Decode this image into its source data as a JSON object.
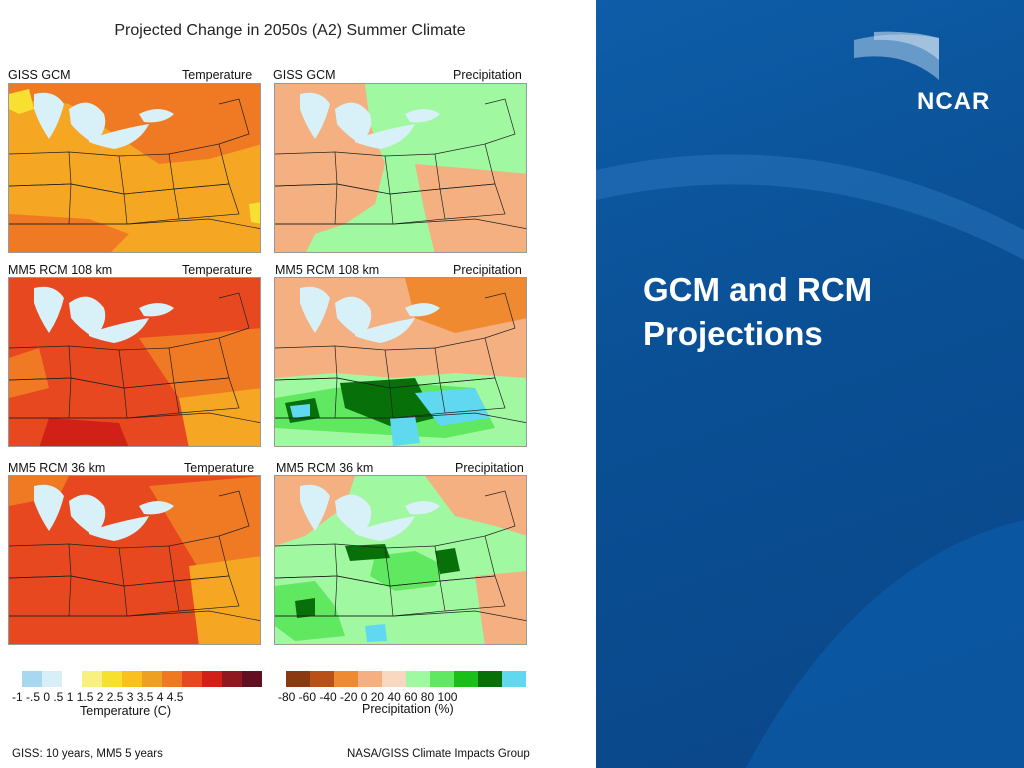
{
  "figure": {
    "title": "Projected Change in 2050s (A2) Summer Climate",
    "panels": [
      {
        "left": "GISS GCM",
        "right": "Temperature"
      },
      {
        "left": "GISS GCM",
        "right": "Precipitation"
      },
      {
        "left": "MM5 RCM 108 km",
        "right": "Temperature"
      },
      {
        "left": "MM5 RCM 108 km",
        "right": "Precipitation"
      },
      {
        "left": "MM5 RCM 36 km",
        "right": "Temperature"
      },
      {
        "left": "MM5 RCM 36 km",
        "right": "Precipitation"
      }
    ],
    "temp_legend": {
      "ticks": "-1  -.5   0   .5   1  1.5  2  2.5  3  3.5  4  4.5",
      "title": "Temperature (C)",
      "colors": [
        "#a8d8f0",
        "#d8eef8",
        "#ffffff",
        "#f8f080",
        "#f8e030",
        "#f8c020",
        "#f0a020",
        "#f07820",
        "#e84820",
        "#d02018",
        "#901820",
        "#601020"
      ]
    },
    "precip_legend": {
      "ticks": "-80 -60  -40  -20    0   20   40   60   80  100",
      "title": "Precipitation (%)",
      "colors": [
        "#8a3a10",
        "#b85018",
        "#f08a30",
        "#f4b080",
        "#f8d8c0",
        "#a0f8a0",
        "#60e860",
        "#18c018",
        "#087008",
        "#60d8f0"
      ]
    },
    "footnote_left": "GISS: 10 years, MM5  5 years",
    "footnote_right": "NASA/GISS Climate Impacts Group"
  },
  "slide": {
    "logo_text": "NCAR",
    "heading": "GCM and RCM Projections"
  }
}
